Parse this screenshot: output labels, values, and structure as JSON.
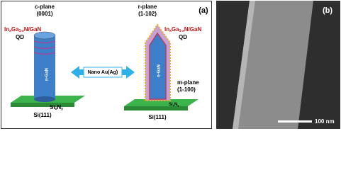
{
  "panel_a": {
    "label": "(a)",
    "left_rod": {
      "plane": "c-plane",
      "index": "(0001)",
      "qw": {
        "parts": [
          "In",
          "x",
          "Ga",
          "1-x",
          "N/GaN"
        ]
      },
      "qd": "QD",
      "core": "n-GaN",
      "interlayer": {
        "parts": [
          "Si",
          "x",
          "N",
          "y"
        ]
      },
      "substrate": "Si(111)"
    },
    "arrow": "Nano Au(Ag)",
    "right_rod": {
      "plane_top": "r-plane",
      "index_top": "(1-102)",
      "qw": {
        "parts": [
          "In",
          "x",
          "Ga",
          "1-x",
          "N/GaN"
        ]
      },
      "qd": "QD",
      "plane_side": "m-plane",
      "index_side": "(1-100)",
      "core": "n-GaN",
      "interlayer": {
        "parts": [
          "Si",
          "x",
          "N",
          "y"
        ]
      },
      "substrate": "Si(111)"
    }
  },
  "panel_b": {
    "label": "(b)",
    "scale_bar": "100 nm"
  }
}
